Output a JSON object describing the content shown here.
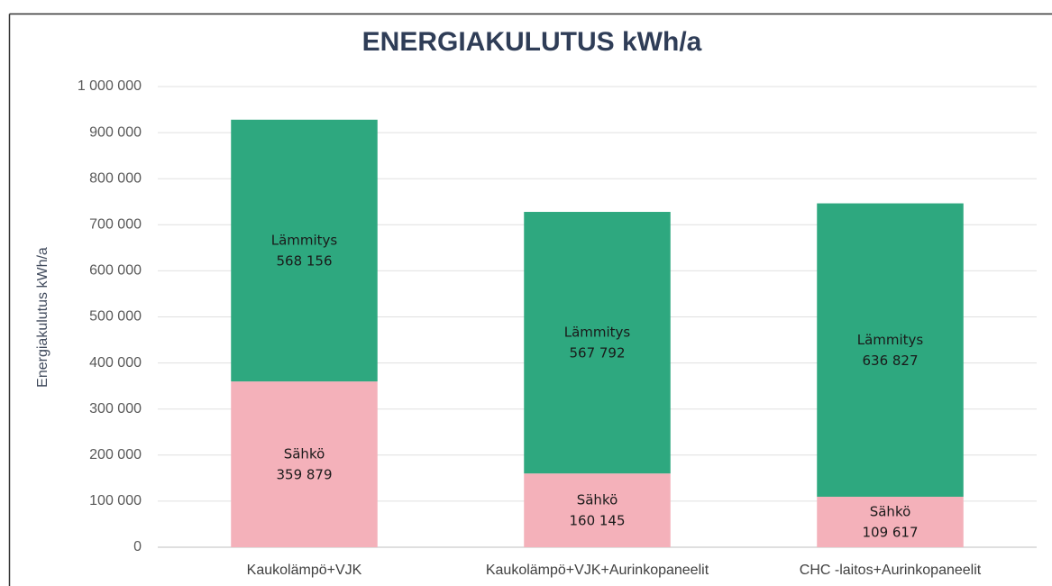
{
  "chart_data": {
    "type": "stacked_bar",
    "title": "ENERGIAKULUTUS kWh/a",
    "y_label": "Energiakulutus kWh/a",
    "categories": [
      "Kaukolämpö+VJK",
      "Kaukolämpö+VJK+Aurinkopaneelit",
      "CHC -laitos+Aurinkopaneelit"
    ],
    "series": [
      {
        "name": "Sähkö",
        "color": "#f4b1ba",
        "values": [
          359879,
          160145,
          109617
        ],
        "value_labels": [
          "359 879",
          "160 145",
          "109 617"
        ]
      },
      {
        "name": "Lämmitys",
        "color": "#2ea87f",
        "values": [
          568156,
          567792,
          636827
        ],
        "value_labels": [
          "568 156",
          "567 792",
          "636 827"
        ]
      }
    ],
    "ylim": [
      0,
      1000000
    ],
    "yticks": [
      0,
      {
        "value": 100000,
        "label": "100 000"
      },
      {
        "value": 200000,
        "label": "200 000"
      },
      {
        "value": 300000,
        "label": "300 000"
      },
      {
        "value": 400000,
        "label": "400 000"
      },
      {
        "value": 500000,
        "label": "500 000"
      },
      {
        "value": 600000,
        "label": "600 000"
      },
      {
        "value": 700000,
        "label": "700 000"
      },
      {
        "value": 800000,
        "label": "800 000"
      },
      {
        "value": 900000,
        "label": "900 000"
      },
      {
        "value": 1000000,
        "label": "1 000 000"
      }
    ],
    "grid": true
  }
}
